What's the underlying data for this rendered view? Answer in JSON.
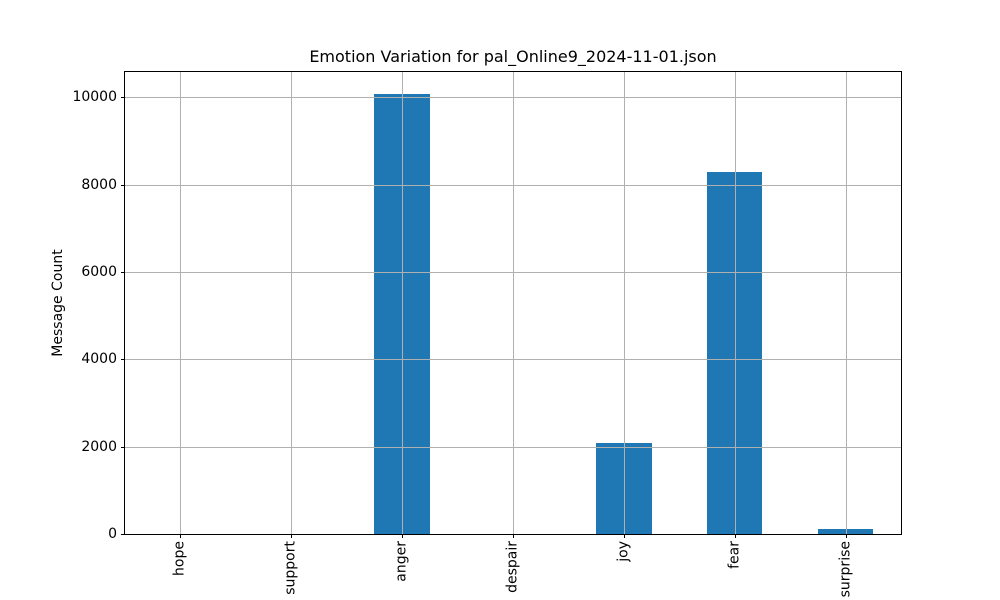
{
  "figure": {
    "background": "#ffffff",
    "text_color": "#000000"
  },
  "chart_data": {
    "type": "bar",
    "title": "Emotion Variation for pal_Online9_2024-11-01.json",
    "xlabel": "",
    "ylabel": "Message Count",
    "categories": [
      "hope",
      "support",
      "anger",
      "despair",
      "joy",
      "fear",
      "surprise"
    ],
    "values": [
      0,
      0,
      10080,
      0,
      2080,
      8280,
      110
    ],
    "yticks": [
      0,
      2000,
      4000,
      6000,
      8000,
      10000
    ],
    "ylim": [
      0,
      10580
    ],
    "grid": true,
    "grid_over_bars": true,
    "legend_position": "none",
    "x_tick_rotation": 90,
    "bar_width_fraction": 0.5,
    "bar_color": "#1f77b4",
    "grid_color": "#b0b0b0",
    "spine_color": "#000000"
  }
}
